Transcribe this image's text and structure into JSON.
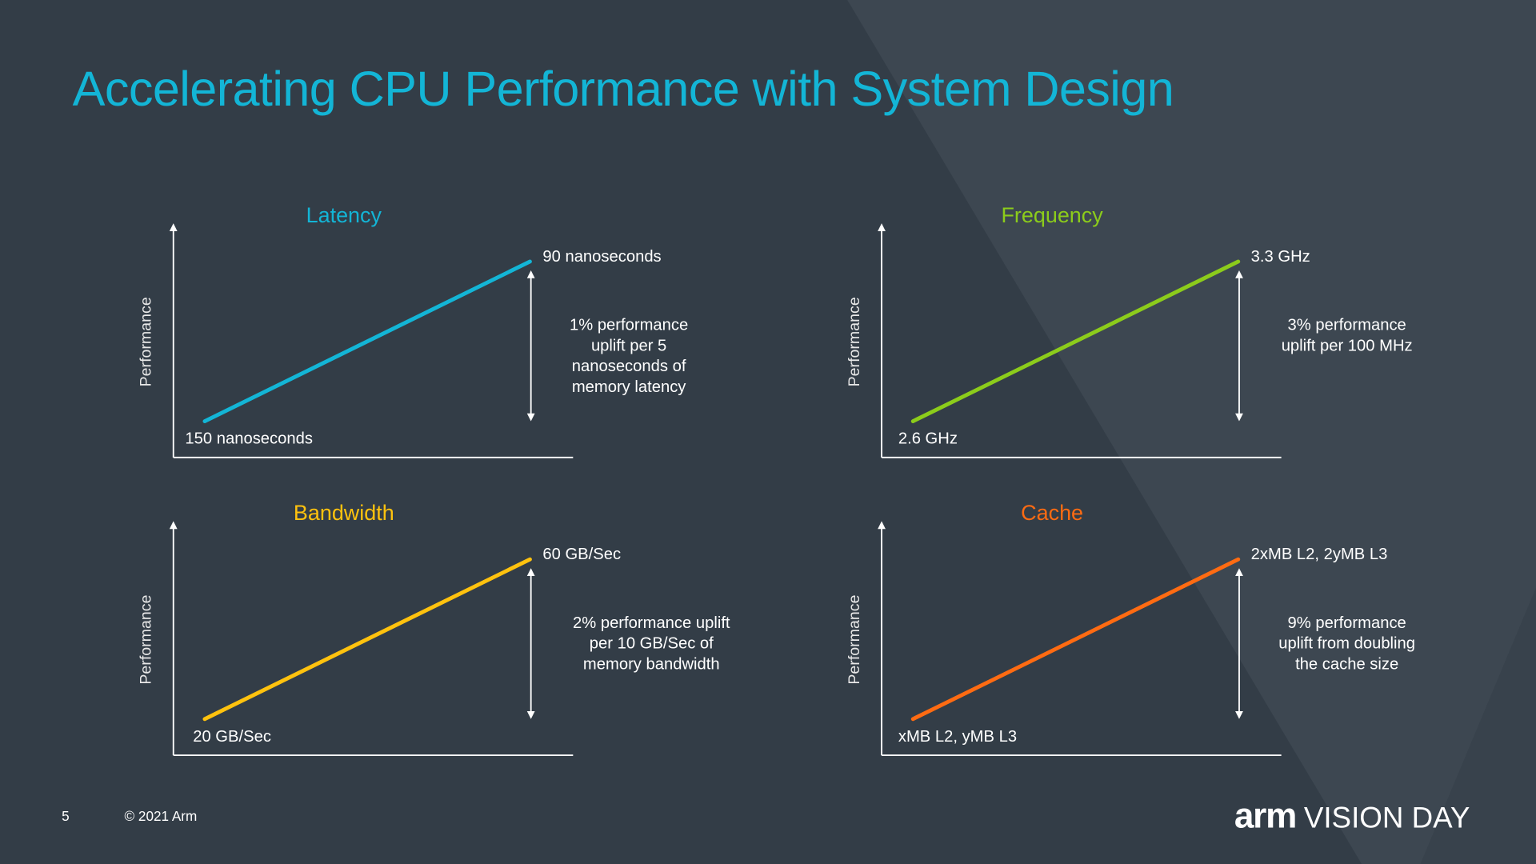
{
  "slide": {
    "title": "Accelerating CPU Performance with System Design",
    "page_number": "5",
    "copyright": "© 2021 Arm",
    "logo": {
      "brand": "arm",
      "event": "VISION DAY"
    },
    "colors": {
      "background": "#333d47",
      "title": "#13b5d6",
      "triangle": "#3d4751"
    }
  },
  "chart_data": [
    {
      "type": "line",
      "title": "Latency",
      "color": "#13b5d6",
      "ylabel": "Performance",
      "start_label": "150 nanoseconds",
      "end_label": "90 nanoseconds",
      "annotation": "1% performance\nuplift per 5\nnanoseconds of\nmemory latency"
    },
    {
      "type": "line",
      "title": "Frequency",
      "color": "#8ccc1b",
      "ylabel": "Performance",
      "start_label": "2.6 GHz",
      "end_label": "3.3 GHz",
      "annotation": "3% performance\nuplift per 100 MHz"
    },
    {
      "type": "line",
      "title": "Bandwidth",
      "color": "#ffc20e",
      "ylabel": "Performance",
      "start_label": "20 GB/Sec",
      "end_label": "60 GB/Sec",
      "annotation": "2% performance uplift\nper 10 GB/Sec of\nmemory bandwidth"
    },
    {
      "type": "line",
      "title": "Cache",
      "color": "#ff6b12",
      "ylabel": "Performance",
      "start_label": "xMB L2, yMB L3",
      "end_label": "2xMB L2, 2yMB L3",
      "annotation": "9% performance\nuplift from doubling\nthe cache size"
    }
  ]
}
